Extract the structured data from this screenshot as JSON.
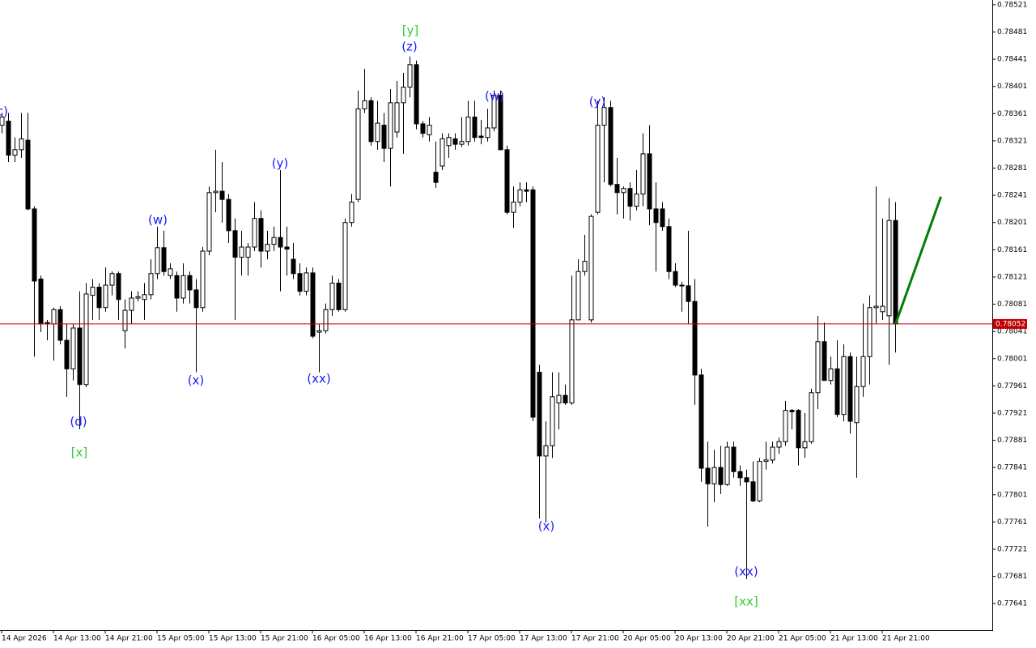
{
  "chart_data": {
    "type": "candlestick",
    "bull_color": "#ffffff",
    "bear_color": "#000000",
    "outline_color": "#000000",
    "ylim": [
      0.77602,
      0.78528
    ],
    "yticks": [
      0.78521,
      0.78481,
      0.78441,
      0.78401,
      0.78361,
      0.78321,
      0.78281,
      0.78241,
      0.78201,
      0.78161,
      0.78121,
      0.78081,
      0.78041,
      0.78001,
      0.77961,
      0.77921,
      0.77881,
      0.77841,
      0.77801,
      0.77761,
      0.77721,
      0.77681,
      0.77641
    ],
    "current_price": 0.78052,
    "current_price_color": "#c00000",
    "categories": [
      "14 Apr 2026",
      null,
      null,
      null,
      null,
      null,
      null,
      null,
      "14 Apr 13:00",
      null,
      null,
      null,
      null,
      null,
      null,
      null,
      "14 Apr 21:00",
      null,
      null,
      null,
      null,
      null,
      null,
      null,
      "15 Apr 05:00",
      null,
      null,
      null,
      null,
      null,
      null,
      null,
      "15 Apr 13:00",
      null,
      null,
      null,
      null,
      null,
      null,
      null,
      "15 Apr 21:00",
      null,
      null,
      null,
      null,
      null,
      null,
      null,
      "16 Apr 05:00",
      null,
      null,
      null,
      null,
      null,
      null,
      null,
      "16 Apr 13:00",
      null,
      null,
      null,
      null,
      null,
      null,
      null,
      "16 Apr 21:00",
      null,
      null,
      null,
      null,
      null,
      null,
      null,
      "17 Apr 05:00",
      null,
      null,
      null,
      null,
      null,
      null,
      null,
      "17 Apr 13:00",
      null,
      null,
      null,
      null,
      null,
      null,
      null,
      "17 Apr 21:00",
      null,
      null,
      null,
      null,
      null,
      null,
      null,
      "20 Apr 05:00",
      null,
      null,
      null,
      null,
      null,
      null,
      null,
      "20 Apr 13:00",
      null,
      null,
      null,
      null,
      null,
      null,
      null,
      "20 Apr 21:00",
      null,
      null,
      null,
      null,
      null,
      null,
      null,
      "21 Apr 05:00",
      null,
      null,
      null,
      null,
      null,
      null,
      null,
      "21 Apr 13:00",
      null,
      null,
      null,
      null,
      null,
      null,
      null,
      "21 Apr 21:00",
      null,
      null
    ],
    "open": [
      0.78344,
      0.7835,
      0.783,
      0.78308,
      0.78322,
      0.78221,
      0.78118,
      0.78054,
      0.78052,
      0.78073,
      0.78028,
      0.77986,
      0.78046,
      0.77963,
      0.78094,
      0.78106,
      0.78076,
      0.78109,
      0.78126,
      0.78042,
      0.78072,
      0.7809,
      0.78088,
      0.78095,
      0.78126,
      0.78164,
      0.78123,
      0.78123,
      0.7809,
      0.78123,
      0.78102,
      0.78076,
      0.78159,
      0.78245,
      0.78247,
      0.78235,
      0.78189,
      0.7815,
      0.7815,
      0.78165,
      0.78207,
      0.78159,
      0.78169,
      0.78179,
      0.78165,
      0.78147,
      0.78126,
      0.781,
      0.78127,
      0.7804,
      0.78042,
      0.78073,
      0.78112,
      0.78073,
      0.78201,
      0.78235,
      0.78368,
      0.7838,
      0.7832,
      0.78344,
      0.7831,
      0.78334,
      0.78377,
      0.784,
      0.78433,
      0.78346,
      0.7833,
      0.78275,
      0.78284,
      0.78314,
      0.78324,
      0.78316,
      0.7832,
      0.78356,
      0.78328,
      0.78326,
      0.7834,
      0.78388,
      0.78308,
      0.78216,
      0.78231,
      0.78249,
      0.78249,
      0.77981,
      0.77858,
      0.77873,
      0.77936,
      0.77947,
      0.77936,
      0.78058,
      0.78129,
      0.78058,
      0.78216,
      0.78344,
      0.7837,
      0.78257,
      0.78245,
      0.78251,
      0.78225,
      0.78243,
      0.78302,
      0.78221,
      0.78221,
      0.78195,
      0.78129,
      0.78109,
      0.78108,
      0.78085,
      0.77977,
      0.7784,
      0.77817,
      0.77841,
      0.77816,
      0.77871,
      0.77835,
      0.77826,
      0.7782,
      0.77792,
      0.7785,
      0.77852,
      0.77871,
      0.77879,
      0.77925,
      0.77925,
      0.7787,
      0.77879,
      0.77951,
      0.78026,
      0.77969,
      0.77986,
      0.77919,
      0.78004,
      0.77907,
      0.7796,
      0.78004,
      0.78076,
      0.7807,
      0.78064,
      0.78204
    ],
    "high": [
      0.78362,
      0.78362,
      0.78326,
      0.78362,
      0.78362,
      0.78225,
      0.78123,
      0.78058,
      0.78076,
      0.78078,
      0.78052,
      0.78052,
      0.781,
      0.78112,
      0.78118,
      0.78112,
      0.78135,
      0.78129,
      0.78129,
      0.78088,
      0.781,
      0.781,
      0.78112,
      0.78147,
      0.78195,
      0.78189,
      0.78141,
      0.78129,
      0.78141,
      0.78129,
      0.78118,
      0.78165,
      0.78254,
      0.78308,
      0.7829,
      0.78243,
      0.78207,
      0.78189,
      0.78171,
      0.78231,
      0.78219,
      0.78189,
      0.78195,
      0.78278,
      0.78195,
      0.78171,
      0.78141,
      0.78135,
      0.78135,
      0.78052,
      0.78082,
      0.78123,
      0.78118,
      0.78207,
      0.78243,
      0.78395,
      0.78427,
      0.78385,
      0.7838,
      0.78362,
      0.78397,
      0.78409,
      0.78421,
      0.78445,
      0.78439,
      0.7835,
      0.78356,
      0.7832,
      0.78332,
      0.78332,
      0.78332,
      0.78356,
      0.7838,
      0.7838,
      0.78352,
      0.78368,
      0.78395,
      0.78395,
      0.78314,
      0.78254,
      0.7826,
      0.7826,
      0.78254,
      0.77992,
      0.77909,
      0.77981,
      0.77981,
      0.77963,
      0.78123,
      0.78147,
      0.78183,
      0.78213,
      0.7838,
      0.78385,
      0.7838,
      0.78296,
      0.78254,
      0.7826,
      0.78278,
      0.78332,
      0.78344,
      0.7826,
      0.78231,
      0.78207,
      0.78141,
      0.78114,
      0.78189,
      0.78118,
      0.77986,
      0.77879,
      0.77867,
      0.77873,
      0.77879,
      0.77879,
      0.77844,
      0.77838,
      0.7785,
      0.77855,
      0.77879,
      0.77879,
      0.77885,
      0.77939,
      0.77927,
      0.77927,
      0.77921,
      0.77957,
      0.78064,
      0.78054,
      0.78004,
      0.78028,
      0.78022,
      0.7801,
      0.78004,
      0.78082,
      0.78094,
      0.78254,
      0.78207,
      0.78237,
      0.78231
    ],
    "low": [
      0.78332,
      0.7829,
      0.7829,
      0.78296,
      0.78219,
      0.78004,
      0.7804,
      0.78028,
      0.77998,
      0.78022,
      0.77945,
      0.77969,
      0.77897,
      0.77959,
      0.78058,
      0.78058,
      0.7807,
      0.78094,
      0.78058,
      0.78016,
      0.78052,
      0.78085,
      0.78058,
      0.78088,
      0.78118,
      0.78123,
      0.78118,
      0.7807,
      0.78082,
      0.78082,
      0.77981,
      0.7807,
      0.78153,
      0.78216,
      0.78201,
      0.78171,
      0.78058,
      0.78123,
      0.78123,
      0.78159,
      0.78135,
      0.78147,
      0.78159,
      0.781,
      0.78123,
      0.78118,
      0.78094,
      0.78094,
      0.78031,
      0.77981,
      0.78038,
      0.78064,
      0.7807,
      0.7807,
      0.78195,
      0.78231,
      0.78362,
      0.78314,
      0.78308,
      0.7829,
      0.78254,
      0.78326,
      0.78302,
      0.78385,
      0.78338,
      0.78326,
      0.7832,
      0.78252,
      0.78278,
      0.78296,
      0.78308,
      0.78312,
      0.78314,
      0.7832,
      0.78316,
      0.7832,
      0.78335,
      0.78308,
      0.78213,
      0.78193,
      0.78225,
      0.78231,
      0.77909,
      0.77766,
      0.7776,
      0.77855,
      0.77897,
      0.77933,
      0.77933,
      0.78058,
      0.78123,
      0.78054,
      0.78213,
      0.7826,
      0.78254,
      0.78213,
      0.78207,
      0.78204,
      0.78219,
      0.78225,
      0.78197,
      0.78129,
      0.78189,
      0.78118,
      0.78106,
      0.7807,
      0.78052,
      0.77933,
      0.7782,
      0.77754,
      0.7779,
      0.77802,
      0.77814,
      0.77826,
      0.77814,
      0.77677,
      0.7779,
      0.7779,
      0.77838,
      0.77847,
      0.77861,
      0.77873,
      0.77897,
      0.77844,
      0.77855,
      0.77876,
      0.77927,
      0.77969,
      0.77963,
      0.77915,
      0.77909,
      0.77891,
      0.77826,
      0.77945,
      0.77963,
      0.78052,
      0.78058,
      0.77992,
      0.7801
    ],
    "close": [
      0.78356,
      0.783,
      0.78308,
      0.78324,
      0.78221,
      0.78115,
      0.78052,
      0.78052,
      0.78073,
      0.78028,
      0.77986,
      0.78046,
      0.77963,
      0.78096,
      0.78106,
      0.78076,
      0.78109,
      0.78126,
      0.78088,
      0.78072,
      0.7809,
      0.78092,
      0.78095,
      0.78126,
      0.78164,
      0.78129,
      0.78133,
      0.7809,
      0.78123,
      0.78102,
      0.78076,
      0.78159,
      0.78245,
      0.78247,
      0.78235,
      0.78189,
      0.7815,
      0.78165,
      0.78165,
      0.78207,
      0.78159,
      0.78169,
      0.78179,
      0.78165,
      0.78162,
      0.78126,
      0.781,
      0.78127,
      0.78034,
      0.78042,
      0.78073,
      0.78112,
      0.78073,
      0.78201,
      0.78231,
      0.78368,
      0.7838,
      0.7832,
      0.78347,
      0.7831,
      0.78377,
      0.78377,
      0.784,
      0.78433,
      0.78346,
      0.78332,
      0.78344,
      0.7826,
      0.78324,
      0.78326,
      0.78316,
      0.7832,
      0.78356,
      0.78326,
      0.78326,
      0.7834,
      0.78388,
      0.78308,
      0.78216,
      0.78231,
      0.78249,
      0.78247,
      0.77915,
      0.77858,
      0.77873,
      0.77945,
      0.77947,
      0.77936,
      0.78058,
      0.78129,
      0.78144,
      0.7821,
      0.78344,
      0.7837,
      0.78257,
      0.78245,
      0.78251,
      0.78225,
      0.78243,
      0.78302,
      0.78221,
      0.78201,
      0.78195,
      0.78129,
      0.78109,
      0.78108,
      0.78085,
      0.77977,
      0.7784,
      0.77817,
      0.77841,
      0.77816,
      0.77871,
      0.77835,
      0.77826,
      0.7782,
      0.77792,
      0.7785,
      0.77852,
      0.77871,
      0.77879,
      0.77925,
      0.77923,
      0.7787,
      0.77879,
      0.77951,
      0.78026,
      0.77969,
      0.77986,
      0.77919,
      0.78004,
      0.77909,
      0.7796,
      0.78004,
      0.78076,
      0.78078,
      0.78078,
      0.78204,
      0.78052
    ],
    "projection": {
      "values": [
        0.78052,
        0.78239
      ],
      "color": "#008000"
    },
    "annotations": [
      {
        "text": "(c)",
        "color": "#1a1aff"
      },
      {
        "text": "(d)",
        "color": "#1a1aff"
      },
      {
        "text": "[x]",
        "color": "#33cc33"
      },
      {
        "text": "(w)",
        "color": "#1a1aff"
      },
      {
        "text": "(x)",
        "color": "#1a1aff"
      },
      {
        "text": "(y)",
        "color": "#1a1aff"
      },
      {
        "text": "(xx)",
        "color": "#1a1aff"
      },
      {
        "text": "[y]",
        "color": "#33cc33"
      },
      {
        "text": "(z)",
        "color": "#1a1aff"
      },
      {
        "text": "(w)",
        "color": "#1a1aff"
      },
      {
        "text": "(x)",
        "color": "#1a1aff"
      },
      {
        "text": "(y)",
        "color": "#1a1aff"
      },
      {
        "text": "(xx)",
        "color": "#1a1aff"
      },
      {
        "text": "[xx]",
        "color": "#33cc33"
      }
    ]
  }
}
